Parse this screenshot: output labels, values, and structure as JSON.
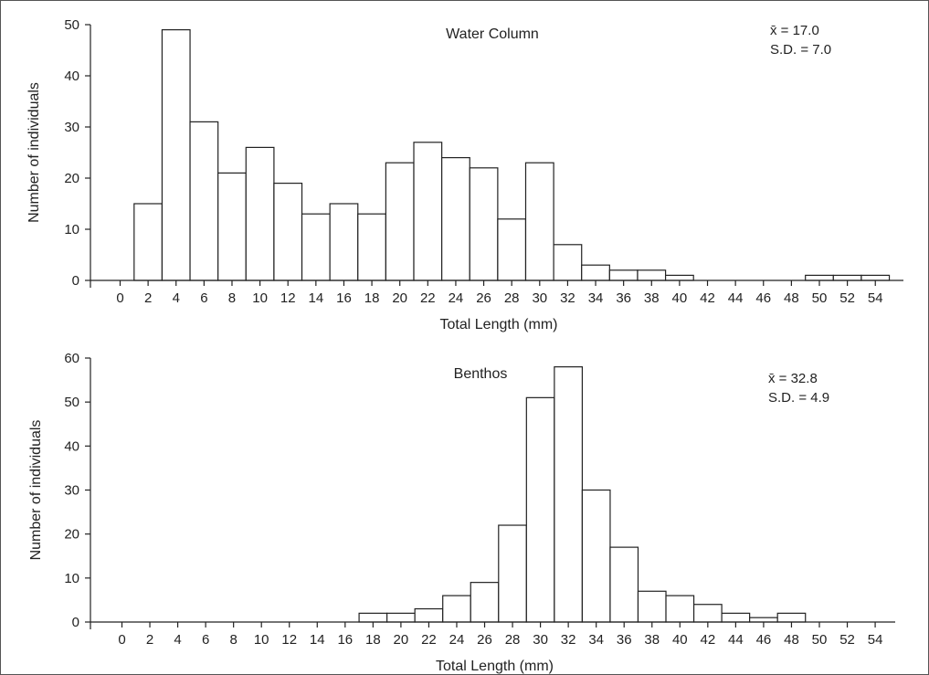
{
  "chart_data": [
    {
      "type": "bar",
      "title": "Water Column",
      "xlabel": "Total Length (mm)",
      "ylabel": "Number of individuals",
      "ylim": [
        0,
        50
      ],
      "yticks": [
        0,
        10,
        20,
        30,
        40,
        50
      ],
      "xticks": [
        0,
        2,
        4,
        6,
        8,
        10,
        12,
        14,
        16,
        18,
        20,
        22,
        24,
        26,
        28,
        30,
        32,
        34,
        36,
        38,
        40,
        42,
        44,
        46,
        48,
        50,
        52,
        54
      ],
      "bin_width": 2,
      "bins": [
        2,
        4,
        6,
        8,
        10,
        12,
        14,
        16,
        18,
        20,
        22,
        24,
        26,
        28,
        30,
        32,
        34,
        36,
        38,
        40,
        50,
        52,
        54
      ],
      "values": [
        15,
        49,
        31,
        21,
        26,
        19,
        13,
        15,
        13,
        23,
        27,
        24,
        22,
        12,
        23,
        7,
        3,
        2,
        2,
        1,
        1,
        1,
        1
      ],
      "stats": {
        "mean_label": "x̄ = 17.0",
        "sd_label": "S.D. = 7.0"
      },
      "grid": false
    },
    {
      "type": "bar",
      "title": "Benthos",
      "xlabel": "Total Length (mm)",
      "ylabel": "Number of individuals",
      "ylim": [
        0,
        60
      ],
      "yticks": [
        0,
        10,
        20,
        30,
        40,
        50,
        60
      ],
      "xticks": [
        0,
        2,
        4,
        6,
        8,
        10,
        12,
        14,
        16,
        18,
        20,
        22,
        24,
        26,
        28,
        30,
        32,
        34,
        36,
        38,
        40,
        42,
        44,
        46,
        48,
        50,
        52,
        54
      ],
      "bin_width": 2,
      "bins": [
        18,
        20,
        22,
        24,
        26,
        28,
        30,
        32,
        34,
        36,
        38,
        40,
        42,
        44,
        46,
        48
      ],
      "values": [
        2,
        2,
        3,
        6,
        9,
        22,
        51,
        58,
        30,
        17,
        7,
        6,
        4,
        2,
        1,
        2
      ],
      "stats": {
        "mean_label": "x̄ = 32.8",
        "sd_label": "S.D. = 4.9"
      },
      "grid": false
    }
  ]
}
